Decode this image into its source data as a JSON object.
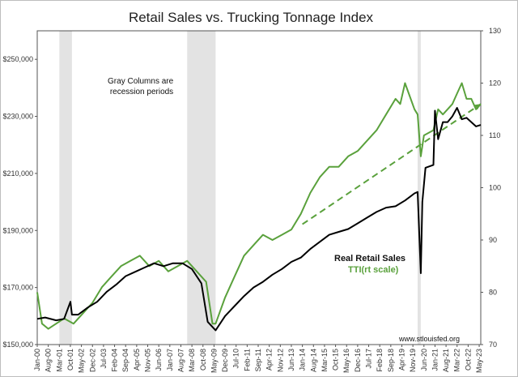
{
  "chart_data": {
    "type": "line",
    "title": "Retail Sales vs. Trucking Tonnage Index",
    "annotation": "Gray Columns are recession periods",
    "source": "www.stlouisfed.org",
    "legend": {
      "retail_label": "Real Retail Sales",
      "tti_label": "TTI(rt scale)",
      "placement": "lower-right"
    },
    "colors": {
      "retail": "#000000",
      "tti": "#5aa13c",
      "recession": "#e3e3e3"
    },
    "y_left": {
      "ticks": [
        "$150,000",
        "$170,000",
        "$190,000",
        "$210,000",
        "$230,000",
        "$250,000"
      ],
      "tick_values": [
        150000,
        170000,
        190000,
        210000,
        230000,
        250000
      ],
      "ylim": [
        150000,
        260000
      ]
    },
    "y_right": {
      "ticks": [
        "70",
        "80",
        "90",
        "100",
        "110",
        "120",
        "130"
      ],
      "tick_values": [
        70,
        80,
        90,
        100,
        110,
        120,
        130
      ],
      "ylim": [
        70,
        130
      ]
    },
    "x_ticks": [
      "Jan-00",
      "Aug-00",
      "Mar-01",
      "Oct-01",
      "May-02",
      "Dec-02",
      "Jul-03",
      "Feb-04",
      "Sep-04",
      "Apr-05",
      "Nov-05",
      "Jun-06",
      "Jan-07",
      "Aug-07",
      "Mar-08",
      "Oct-08",
      "May-09",
      "Dec-09",
      "Jul-10",
      "Feb-11",
      "Sep-11",
      "Apr-12",
      "Nov-12",
      "Jun-13",
      "Jan-14",
      "Aug-14",
      "Mar-15",
      "Oct-15",
      "May-16",
      "Dec-16",
      "Jul-17",
      "Feb-18",
      "Sep-18",
      "Apr-19",
      "Nov-19",
      "Jun-20",
      "Jan-21",
      "Aug-21",
      "Mar-22",
      "Oct-22",
      "May-23"
    ],
    "x_range": [
      "2000-01",
      "2023-06"
    ],
    "recessions": [
      {
        "start": "2001-03",
        "end": "2001-11"
      },
      {
        "start": "2007-12",
        "end": "2009-06"
      },
      {
        "start": "2020-02",
        "end": "2020-04"
      }
    ],
    "series": [
      {
        "name": "Real Retail Sales",
        "axis": "left",
        "x": [
          "2000-01",
          "2000-06",
          "2001-01",
          "2001-06",
          "2001-10",
          "2001-11",
          "2002-03",
          "2002-09",
          "2003-03",
          "2003-09",
          "2004-03",
          "2004-09",
          "2005-03",
          "2005-09",
          "2006-03",
          "2006-09",
          "2007-03",
          "2007-09",
          "2008-03",
          "2008-09",
          "2009-01",
          "2009-06",
          "2009-12",
          "2010-06",
          "2010-12",
          "2011-06",
          "2011-12",
          "2012-06",
          "2012-12",
          "2013-06",
          "2013-12",
          "2014-06",
          "2014-12",
          "2015-06",
          "2015-12",
          "2016-06",
          "2016-12",
          "2017-06",
          "2017-12",
          "2018-06",
          "2018-12",
          "2019-06",
          "2019-12",
          "2020-02",
          "2020-04",
          "2020-05",
          "2020-07",
          "2020-12",
          "2021-01",
          "2021-03",
          "2021-06",
          "2021-09",
          "2021-12",
          "2022-03",
          "2022-06",
          "2022-09",
          "2022-12",
          "2023-03",
          "2023-06"
        ],
        "values": [
          159000,
          159500,
          158500,
          159000,
          165000,
          160500,
          160500,
          163000,
          165000,
          168500,
          171000,
          174000,
          175500,
          177000,
          178500,
          177500,
          178500,
          178500,
          176500,
          171500,
          158000,
          155000,
          160000,
          163500,
          167000,
          170000,
          172000,
          174500,
          176500,
          179000,
          180500,
          183500,
          186000,
          188500,
          189500,
          190500,
          192500,
          194500,
          196500,
          198000,
          198500,
          200500,
          203000,
          203500,
          175000,
          200000,
          212000,
          213000,
          232000,
          222000,
          228000,
          228000,
          230000,
          233000,
          229000,
          229500,
          228000,
          226500,
          227000
        ]
      },
      {
        "name": "TTI(rt scale)",
        "axis": "right",
        "x": [
          "2000-01",
          "2000-04",
          "2000-08",
          "2001-01",
          "2001-06",
          "2001-12",
          "2002-06",
          "2002-12",
          "2003-06",
          "2003-12",
          "2004-06",
          "2004-12",
          "2005-06",
          "2005-12",
          "2006-06",
          "2006-12",
          "2007-06",
          "2007-12",
          "2008-06",
          "2008-12",
          "2009-04",
          "2009-06",
          "2009-12",
          "2010-06",
          "2010-12",
          "2011-06",
          "2011-12",
          "2012-06",
          "2012-12",
          "2013-06",
          "2013-12",
          "2014-06",
          "2014-12",
          "2015-06",
          "2015-12",
          "2016-06",
          "2016-12",
          "2017-06",
          "2017-12",
          "2018-06",
          "2018-12",
          "2019-03",
          "2019-06",
          "2019-12",
          "2020-02",
          "2020-04",
          "2020-06",
          "2020-12",
          "2021-03",
          "2021-06",
          "2021-12",
          "2022-03",
          "2022-06",
          "2022-09",
          "2022-12",
          "2023-03",
          "2023-06"
        ],
        "values": [
          80,
          74,
          73,
          74,
          75,
          74,
          76,
          78,
          81,
          83,
          85,
          86,
          87,
          85,
          86,
          84,
          85,
          86,
          84,
          82,
          74,
          74,
          79,
          83,
          87,
          89,
          91,
          90,
          91,
          92,
          95,
          99,
          102,
          104,
          104,
          106,
          107,
          109,
          111,
          114,
          117,
          116,
          120,
          115,
          114,
          106,
          110,
          111,
          115,
          114,
          116,
          118,
          120,
          117,
          117,
          115,
          116
        ]
      }
    ],
    "trendline": {
      "axis": "right",
      "x": [
        "2014-01",
        "2023-06"
      ],
      "values": [
        93,
        116
      ]
    }
  }
}
